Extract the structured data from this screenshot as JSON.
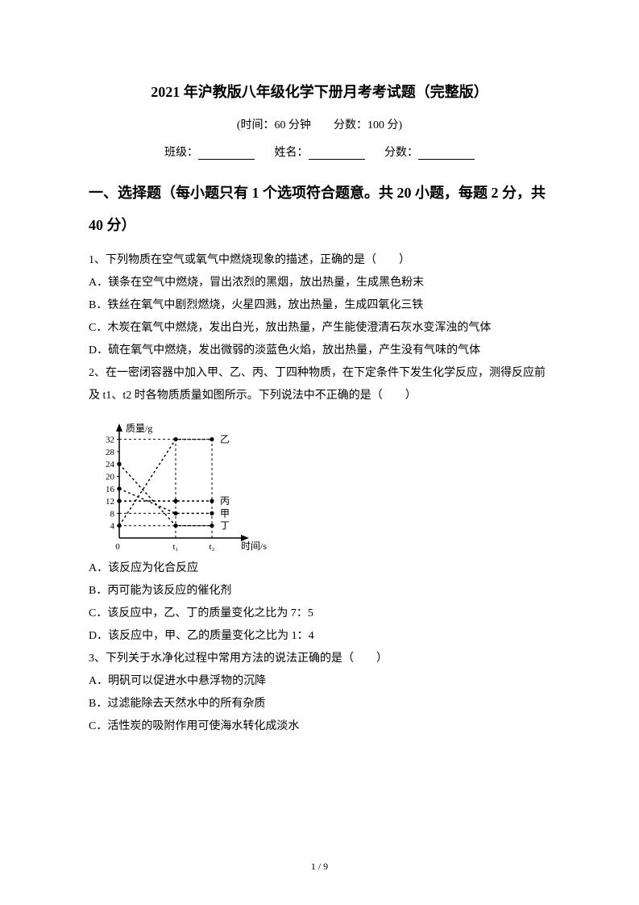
{
  "title": "2021 年沪教版八年级化学下册月考考试题（完整版）",
  "subtitle": "(时间：60 分钟　　分数：100 分)",
  "blanks": {
    "class_label": "班级：",
    "name_label": "姓名：",
    "score_label": "分数："
  },
  "section_header": "一、选择题（每小题只有 1 个选项符合题意。共 20 小题，每题 2 分，共 40 分）",
  "q1": {
    "stem": "1、下列物质在空气或氧气中燃烧现象的描述，正确的是（　　）",
    "A": "A．镁条在空气中燃烧，冒出浓烈的黑烟，放出热量，生成黑色粉末",
    "B": "B．铁丝在氧气中剧烈燃烧，火星四溅，放出热量，生成四氧化三铁",
    "C": "C．木炭在氧气中燃烧，发出白光，放出热量，产生能使澄清石灰水变浑浊的气体",
    "D": "D．硫在氧气中燃烧，发出微弱的淡蓝色火焰，放出热量，产生没有气味的气体"
  },
  "q2": {
    "stem1": "2、在一密闭容器中加入甲、乙、丙、丁四种物质，在下定条件下发生化学反应，测得反应前及 t1、t2 时各物质质量如图所示。下列说法中不正确的是（　　）",
    "A": "A．该反应为化合反应",
    "B": "B．丙可能为该反应的催化剂",
    "C": "C．该反应中，乙、丁的质量变化之比为 7：5",
    "D": "D．该反应中，甲、乙的质量变化之比为 1：4"
  },
  "q3": {
    "stem": "3、下列关于水净化过程中常用方法的说法正确的是（　　）",
    "A": "A．明矾可以促进水中悬浮物的沉降",
    "B": "B．过滤能除去天然水中的所有杂质",
    "C": "C．活性炭的吸附作用可使海水转化成淡水"
  },
  "chart": {
    "y_label": "质量/g",
    "x_label": "时间/s",
    "y_ticks": [
      4,
      8,
      12,
      16,
      20,
      24,
      28,
      32
    ],
    "x_ticks": [
      "0",
      "t₁",
      "t₂"
    ],
    "series": {
      "jia": {
        "label": "甲",
        "values_t": [
          0,
          1,
          2
        ],
        "values_y": [
          16,
          8,
          8
        ]
      },
      "yi": {
        "label": "乙",
        "values_t": [
          0,
          1,
          2
        ],
        "values_y": [
          4,
          32,
          32
        ]
      },
      "bing": {
        "label": "丙",
        "values_t": [
          0,
          1,
          2
        ],
        "values_y": [
          12,
          12,
          12
        ]
      },
      "ding": {
        "label": "丁",
        "values_t": [
          0,
          1,
          2
        ],
        "values_y": [
          24,
          4,
          4
        ]
      }
    },
    "axis_color": "#000000",
    "line_color": "#000000",
    "dash_pattern": "3,3",
    "marker_radius": 2.6,
    "font_size_axis": 11,
    "font_size_label": 12
  },
  "page_number": "1 / 9"
}
